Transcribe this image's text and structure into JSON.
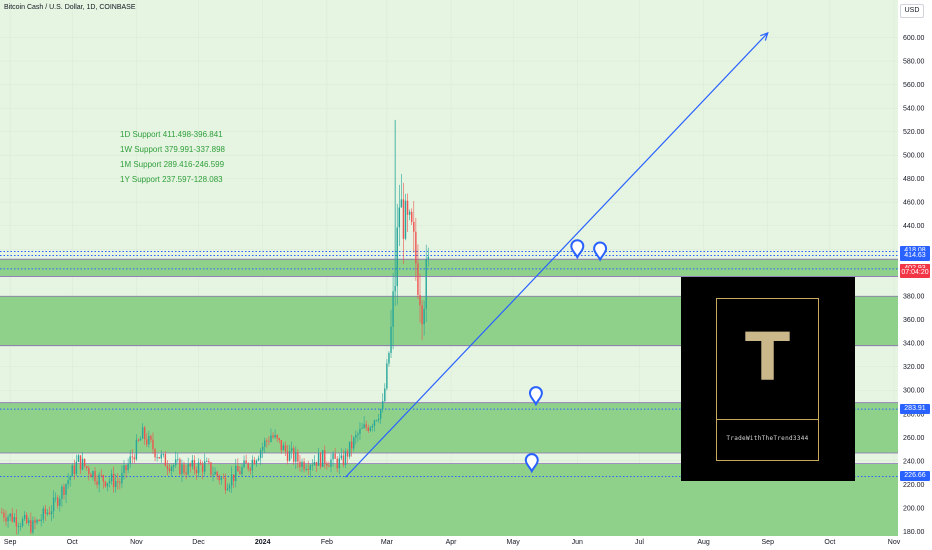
{
  "header": {
    "title": "Bitcoin Cash / U.S. Dollar, 1D, COINBASE",
    "currency": "USD"
  },
  "supports": [
    "1D Support 411.498-396.841",
    "1W Support 379.991-337.898",
    "1M Support 289.416-246.599",
    "1Y Support 237.597-128.083"
  ],
  "price_labels": [
    {
      "label": "418.08",
      "value": 418.08,
      "color": "#2962ff"
    },
    {
      "label": "414.63",
      "value": 414.63,
      "color": "#2962ff"
    },
    {
      "label": "403.21",
      "value": 403.21,
      "color": "#2962ff"
    },
    {
      "label": "402.93",
      "value": 402.93,
      "color": "#f23645"
    },
    {
      "label": "07:04:20",
      "value": 399.8,
      "color": "#f23645"
    },
    {
      "label": "283.91",
      "value": 283.91,
      "color": "#2962ff"
    },
    {
      "label": "226.66",
      "value": 226.66,
      "color": "#2962ff"
    }
  ],
  "logo": {
    "letter": "T",
    "caption": "TradeWithTheTrend3344"
  },
  "colors": {
    "zone": "#8fd18a",
    "zone_light": "#e6f4e2",
    "up": "#26a69a",
    "down": "#ef5350",
    "line": "#2962ff"
  },
  "chart_data": {
    "type": "candlestick",
    "title": "Bitcoin Cash / U.S. Dollar, 1D, COINBASE",
    "ylim": [
      176,
      632
    ],
    "y_ticks": [
      180,
      200,
      220,
      240,
      260,
      280,
      300,
      320,
      340,
      360,
      380,
      400,
      420,
      440,
      460,
      480,
      500,
      520,
      540,
      560,
      580,
      600
    ],
    "x_ticks": [
      "Sep",
      "Oct",
      "Nov",
      "Dec",
      "2024",
      "Feb",
      "Mar",
      "Apr",
      "May",
      "Jun",
      "Jul",
      "Aug",
      "Sep",
      "Oct",
      "Nov"
    ],
    "support_zones": [
      {
        "name": "1D",
        "low": 396.841,
        "high": 411.498
      },
      {
        "name": "1W",
        "low": 337.898,
        "high": 379.991
      },
      {
        "name": "1M",
        "low": 246.599,
        "high": 289.416
      },
      {
        "name": "1Y",
        "low": 128.083,
        "high": 237.597
      }
    ],
    "horizontal_lines": [
      418.08,
      414.63,
      403.21,
      283.91,
      226.66
    ],
    "trend_arrow": {
      "from": {
        "date": "2024-02-10",
        "price": 226
      },
      "to": {
        "date": "2024-09-01",
        "price": 604
      }
    },
    "markers": [
      {
        "date": "2024-06-01",
        "price": 420
      },
      {
        "date": "2024-06-12",
        "price": 418
      },
      {
        "date": "2024-05-12",
        "price": 295
      },
      {
        "date": "2024-05-10",
        "price": 238
      }
    ],
    "price_path": [
      [
        "2023-08-28",
        196
      ],
      [
        "2023-09-12",
        184
      ],
      [
        "2023-09-22",
        202
      ],
      [
        "2023-10-04",
        240
      ],
      [
        "2023-10-14",
        225
      ],
      [
        "2023-10-24",
        222
      ],
      [
        "2023-11-04",
        262
      ],
      [
        "2023-11-14",
        240
      ],
      [
        "2023-11-24",
        233
      ],
      [
        "2023-12-04",
        236
      ],
      [
        "2023-12-14",
        222
      ],
      [
        "2023-12-26",
        238
      ],
      [
        "2024-01-05",
        262
      ],
      [
        "2024-01-12",
        248
      ],
      [
        "2024-01-20",
        238
      ],
      [
        "2024-01-30",
        242
      ],
      [
        "2024-02-08",
        238
      ],
      [
        "2024-02-16",
        262
      ],
      [
        "2024-02-22",
        272
      ],
      [
        "2024-02-28",
        286
      ],
      [
        "2024-03-03",
        348
      ],
      [
        "2024-03-05",
        395
      ],
      [
        "2024-03-07",
        460
      ],
      [
        "2024-03-10",
        440
      ],
      [
        "2024-03-13",
        430
      ],
      [
        "2024-03-18",
        378
      ],
      [
        "2024-03-21",
        402
      ]
    ]
  }
}
